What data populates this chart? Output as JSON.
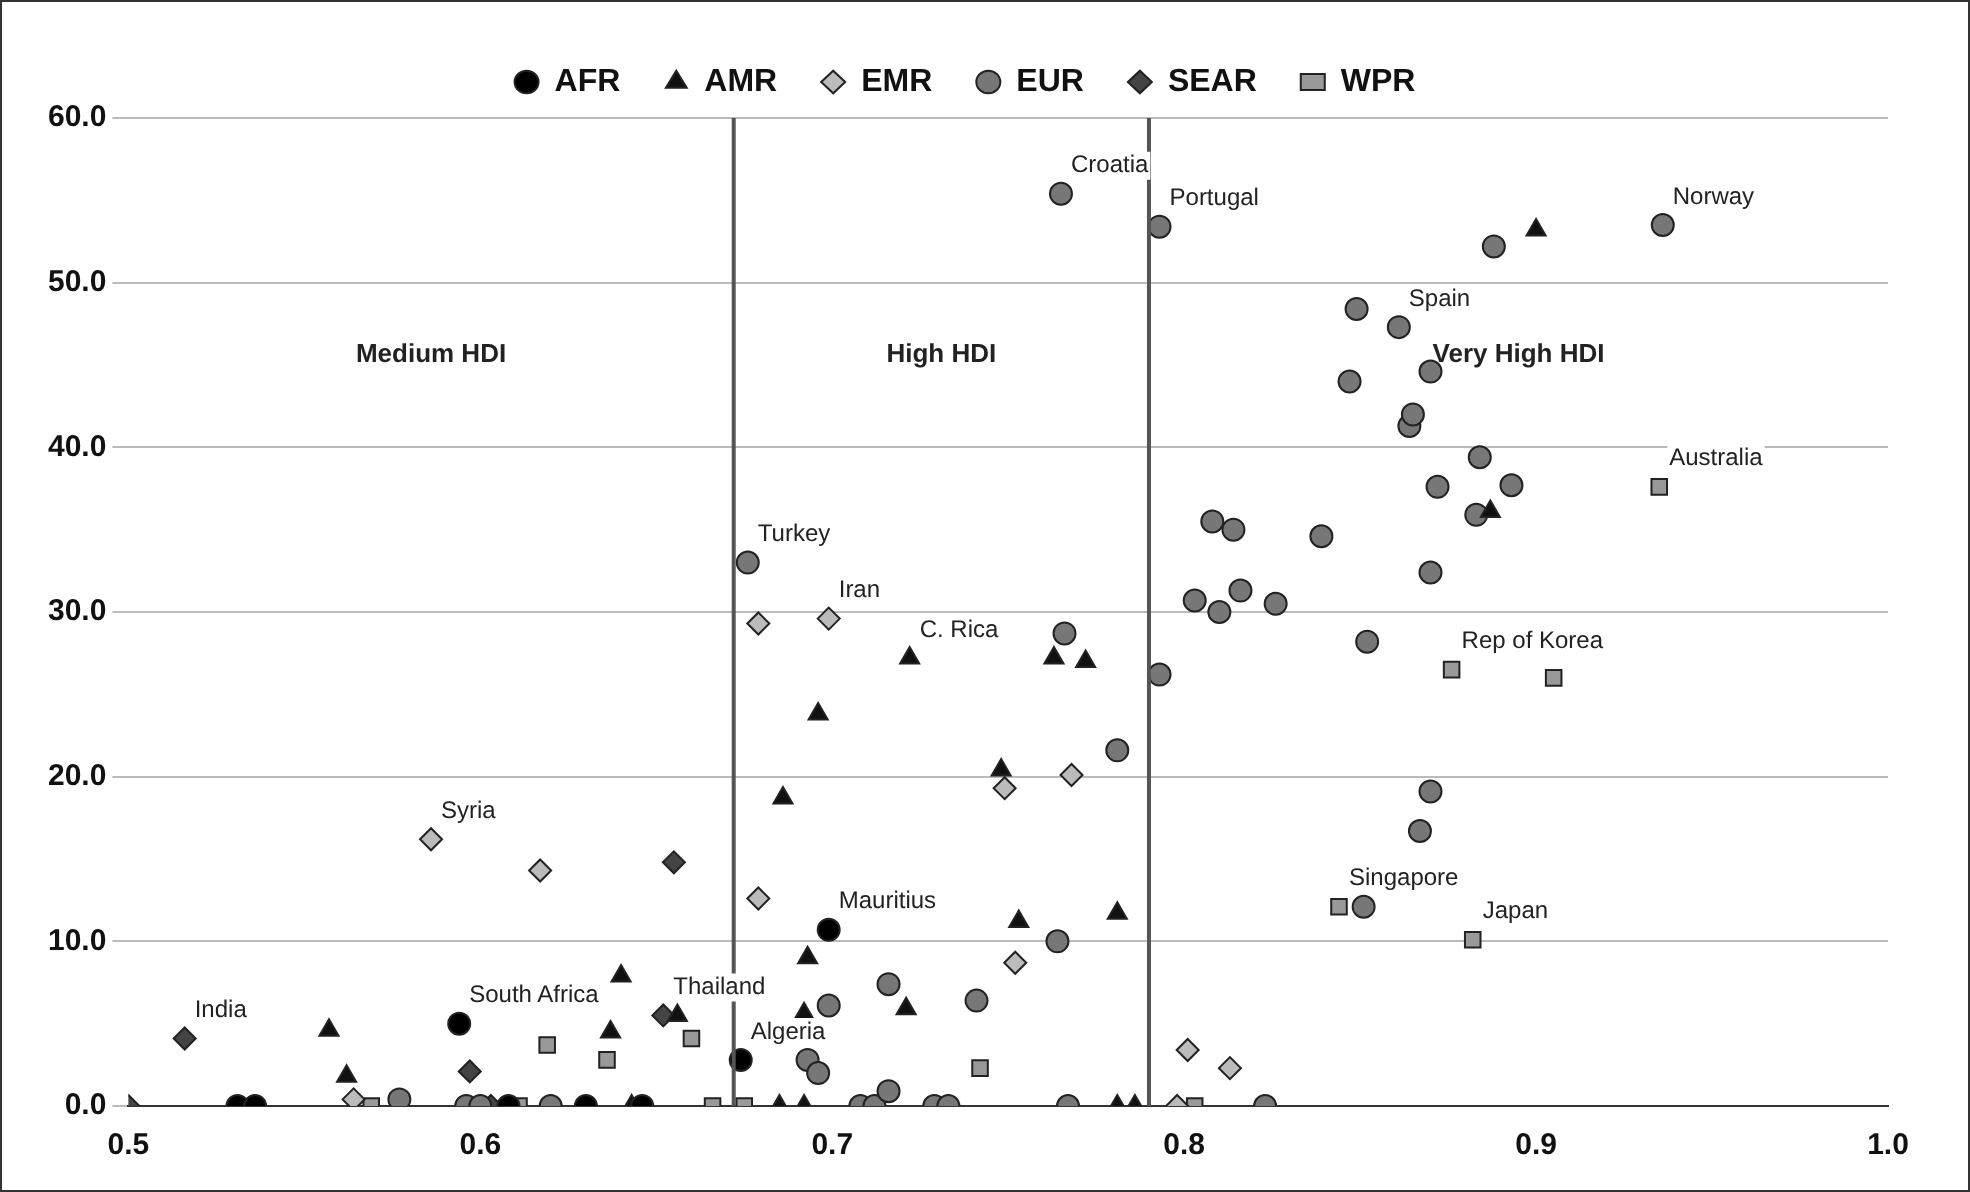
{
  "chart_data": {
    "type": "scatter",
    "xlim": [
      0.5,
      1.0
    ],
    "xticks": [
      0.5,
      0.6,
      0.7,
      0.8,
      0.9,
      {
        "value": 1.0,
        "label": "1.0"
      }
    ],
    "ylim": [
      0,
      60
    ],
    "yticks": [
      {
        "value": 0,
        "label": "0.0"
      },
      {
        "value": 10,
        "label": "10.0"
      },
      {
        "value": 20,
        "label": "20.0"
      },
      {
        "value": 30,
        "label": "30.0"
      },
      {
        "value": 40,
        "label": "40.0"
      },
      {
        "value": 50,
        "label": "50.0"
      },
      {
        "value": 60,
        "label": "60.0"
      }
    ],
    "grid": "y",
    "legend": "top",
    "series": [
      {
        "name": "AFR",
        "color": "#000000",
        "marker": "circle",
        "x": [
          0.531,
          0.536,
          0.594,
          0.608,
          0.63,
          0.646,
          0.674,
          0.699
        ],
        "values": [
          0,
          0,
          5.0,
          0,
          0,
          0,
          2.8,
          10.7
        ]
      },
      {
        "name": "AMR",
        "color": "#111111",
        "marker": "triangle",
        "x": [
          0.557,
          0.562,
          0.637,
          0.64,
          0.643,
          0.656,
          0.685,
          0.686,
          0.692,
          0.692,
          0.693,
          0.696,
          0.721,
          0.722,
          0.748,
          0.753,
          0.763,
          0.772,
          0.781,
          0.781,
          0.786,
          0.887,
          0.9
        ],
        "values": [
          4.6,
          1.8,
          4.5,
          7.9,
          0,
          5.5,
          0,
          18.7,
          0,
          5.6,
          9.0,
          23.8,
          5.9,
          27.2,
          20.4,
          11.2,
          27.2,
          27.0,
          11.7,
          0,
          0,
          36.1,
          53.2
        ]
      },
      {
        "name": "EMR",
        "color": "#bbbbbb",
        "marker": "diamond",
        "x": [
          0.564,
          0.586,
          0.617,
          0.679,
          0.679,
          0.699,
          0.749,
          0.752,
          0.768,
          0.798,
          0.801,
          0.813
        ],
        "values": [
          0.4,
          16.2,
          14.3,
          12.6,
          29.3,
          29.6,
          19.3,
          8.7,
          20.1,
          0,
          3.4,
          2.3
        ]
      },
      {
        "name": "EUR",
        "color": "#777777",
        "marker": "circle",
        "x": [
          0.577,
          0.596,
          0.6,
          0.62,
          0.676,
          0.693,
          0.696,
          0.699,
          0.708,
          0.712,
          0.716,
          0.716,
          0.729,
          0.733,
          0.741,
          0.764,
          0.765,
          0.766,
          0.767,
          0.781,
          0.793,
          0.793,
          0.803,
          0.808,
          0.81,
          0.814,
          0.816,
          0.823,
          0.826,
          0.839,
          0.847,
          0.849,
          0.851,
          0.852,
          0.861,
          0.864,
          0.865,
          0.867,
          0.87,
          0.87,
          0.87,
          0.872,
          0.883,
          0.884,
          0.888,
          0.893,
          0.936
        ],
        "values": [
          0.4,
          0,
          0,
          0,
          33.0,
          2.8,
          2.0,
          6.1,
          0,
          0,
          7.4,
          0.9,
          0,
          0,
          6.4,
          10.0,
          55.4,
          28.7,
          0,
          21.6,
          26.2,
          53.4,
          30.7,
          35.5,
          30.0,
          35.0,
          31.3,
          0,
          30.5,
          34.6,
          44.0,
          48.4,
          12.1,
          28.2,
          47.3,
          41.3,
          42.0,
          16.7,
          44.6,
          32.4,
          19.1,
          37.6,
          35.9,
          39.4,
          52.2,
          37.7,
          53.5
        ]
      },
      {
        "name": "SEAR",
        "color": "#444444",
        "marker": "diamond",
        "x": [
          0.5,
          0.516,
          0.597,
          0.603,
          0.652,
          0.655
        ],
        "values": [
          0,
          4.1,
          2.1,
          0,
          5.5,
          14.8
        ]
      },
      {
        "name": "WPR",
        "color": "#999999",
        "marker": "square",
        "x": [
          0.569,
          0.611,
          0.619,
          0.636,
          0.66,
          0.666,
          0.675,
          0.742,
          0.803,
          0.844,
          0.876,
          0.882,
          0.905,
          0.935
        ],
        "values": [
          0,
          0,
          3.7,
          2.8,
          4.1,
          0,
          0,
          2.3,
          0,
          12.1,
          26.5,
          10.1,
          26.0,
          37.6
        ]
      }
    ],
    "ref_lines": [
      {
        "axis": "x",
        "value": 0.672,
        "color": "#555555"
      },
      {
        "axis": "x",
        "value": 0.79,
        "color": "#555555"
      }
    ],
    "annotations": [
      "Medium HDI",
      "High HDI",
      "Very High HDI",
      {
        "text": "India",
        "x": 0.516,
        "y": 4.1
      },
      {
        "text": "South Africa",
        "x": 0.594,
        "y": 5.0
      },
      {
        "text": "Syria",
        "x": 0.586,
        "y": 16.2
      },
      {
        "text": "Thailand",
        "x": 0.652,
        "y": 5.5
      },
      {
        "text": "Algeria",
        "x": 0.674,
        "y": 2.8
      },
      {
        "text": "Mauritius",
        "x": 0.699,
        "y": 10.7
      },
      {
        "text": "Turkey",
        "x": 0.676,
        "y": 33.0
      },
      {
        "text": "Iran",
        "x": 0.699,
        "y": 29.6
      },
      {
        "text": "C. Rica",
        "x": 0.722,
        "y": 27.2
      },
      {
        "text": "Croatia",
        "x": 0.765,
        "y": 55.4
      },
      {
        "text": "Portugal",
        "x": 0.793,
        "y": 53.4
      },
      {
        "text": "Spain",
        "x": 0.861,
        "y": 47.3
      },
      {
        "text": "Norway",
        "x": 0.936,
        "y": 53.5
      },
      {
        "text": "Australia",
        "x": 0.935,
        "y": 37.6
      },
      {
        "text": "Rep of Korea",
        "x": 0.876,
        "y": 26.5
      },
      {
        "text": "Singapore",
        "x": 0.844,
        "y": 12.1
      },
      {
        "text": "Japan",
        "x": 0.882,
        "y": 10.1
      }
    ]
  }
}
